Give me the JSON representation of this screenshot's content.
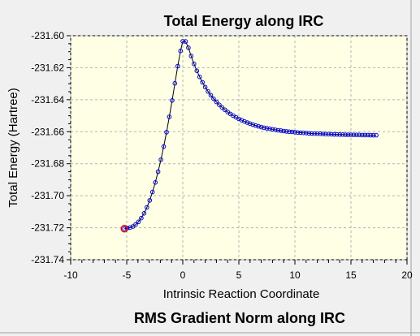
{
  "window": {
    "top_title": "Total Energy along IRC",
    "bottom_title": "RMS Gradient Norm along IRC"
  },
  "colors": {
    "background": "#f0f0f0",
    "plot_area": "#ffffe6",
    "series_point": "#0000e0",
    "series_line": "#000000",
    "highlight_point": "#e00000",
    "grid": "#b4b4b4"
  },
  "chart_data": {
    "type": "line",
    "title": "Total Energy along IRC",
    "xlabel": "Intrinsic Reaction Coordinate",
    "ylabel": "Total Energy (Hartree)",
    "xlim": [
      -10,
      20
    ],
    "ylim": [
      -231.74,
      -231.6
    ],
    "xticks": [
      -10,
      -5,
      0,
      5,
      10,
      15,
      20
    ],
    "xtick_labels": [
      "-10",
      "-5",
      "0",
      "5",
      "10",
      "15",
      "20"
    ],
    "yticks": [
      -231.6,
      -231.62,
      -231.64,
      -231.66,
      -231.68,
      -231.7,
      -231.72,
      -231.74
    ],
    "ytick_labels": [
      "-231.60",
      "-231.62",
      "-231.64",
      "-231.66",
      "-231.68",
      "-231.70",
      "-231.72",
      "-231.74"
    ],
    "grid": true,
    "highlighted_point": {
      "x": -5.2,
      "y": -231.7206
    },
    "series": [
      {
        "x": [
          -5.2,
          -4.95,
          -4.7,
          -4.45,
          -4.2,
          -3.95,
          -3.7,
          -3.45,
          -3.2,
          -2.95,
          -2.7,
          -2.45,
          -2.2,
          -1.95,
          -1.7,
          -1.45,
          -1.2,
          -0.95,
          -0.7,
          -0.45,
          -0.2,
          0,
          0.25,
          0.5,
          0.75,
          1,
          1.25,
          1.5,
          1.75,
          2,
          2.25,
          2.5,
          2.75,
          3,
          3.25,
          3.5,
          3.75,
          4,
          4.25,
          4.5,
          4.75,
          5,
          5.25,
          5.5,
          5.75,
          6,
          6.25,
          6.5,
          6.75,
          7,
          7.25,
          7.5,
          7.75,
          8,
          8.25,
          8.5,
          8.75,
          9,
          9.25,
          9.5,
          9.75,
          10,
          10.25,
          10.5,
          10.75,
          11,
          11.25,
          11.5,
          11.75,
          12,
          12.25,
          12.5,
          12.75,
          13,
          13.25,
          13.5,
          13.75,
          14,
          14.25,
          14.5,
          14.75,
          15,
          15.25,
          15.5,
          15.75,
          16,
          16.25,
          16.5,
          16.75,
          17,
          17.25
        ],
        "y": [
          -231.7206,
          -231.7203,
          -231.7199,
          -231.7192,
          -231.718,
          -231.7163,
          -231.714,
          -231.711,
          -231.7073,
          -231.7029,
          -231.6977,
          -231.6917,
          -231.685,
          -231.6775,
          -231.6693,
          -231.6603,
          -231.6507,
          -231.6405,
          -231.6298,
          -231.619,
          -231.6095,
          -231.6035,
          -231.6036,
          -231.6075,
          -231.6127,
          -231.6176,
          -231.6219,
          -231.6257,
          -231.6291,
          -231.6321,
          -231.6348,
          -231.6372,
          -231.6394,
          -231.6414,
          -231.6432,
          -231.6448,
          -231.6463,
          -231.6477,
          -231.6489,
          -231.65,
          -231.651,
          -231.652,
          -231.6528,
          -231.6536,
          -231.6543,
          -231.655,
          -231.6556,
          -231.6561,
          -231.6566,
          -231.6571,
          -231.6575,
          -231.6579,
          -231.6582,
          -231.6585,
          -231.6588,
          -231.6591,
          -231.6593,
          -231.6596,
          -231.6598,
          -231.66,
          -231.6601,
          -231.6603,
          -231.6605,
          -231.6606,
          -231.6607,
          -231.6608,
          -231.661,
          -231.6611,
          -231.6612,
          -231.6612,
          -231.6613,
          -231.6614,
          -231.6615,
          -231.6615,
          -231.6616,
          -231.6617,
          -231.6617,
          -231.6618,
          -231.6618,
          -231.6619,
          -231.6619,
          -231.6619,
          -231.662,
          -231.662,
          -231.662,
          -231.6621,
          -231.6621,
          -231.6621,
          -231.6622,
          -231.6622,
          -231.6622
        ]
      }
    ]
  }
}
